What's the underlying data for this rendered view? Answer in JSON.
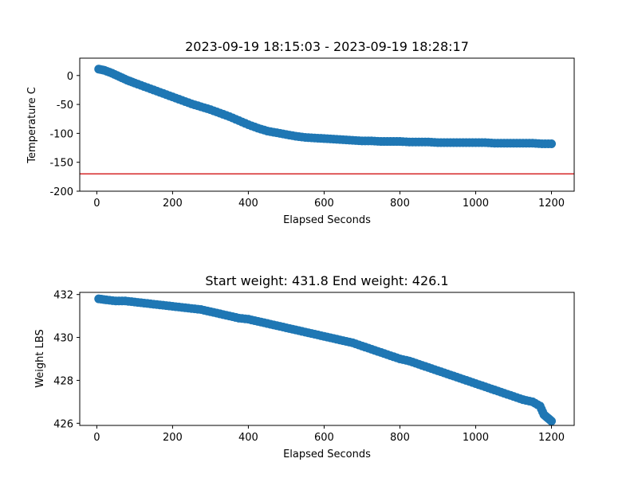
{
  "colors": {
    "series": "#1f77b4",
    "threshold": "#d62728",
    "axis": "#000000"
  },
  "chart_data": [
    {
      "type": "scatter",
      "title": "2023-09-19 18:15:03 - 2023-09-19 18:28:17",
      "xlabel": "Elapsed Seconds",
      "ylabel": "Temperature C",
      "xlim": [
        -45,
        1260
      ],
      "ylim": [
        -200,
        30
      ],
      "xticks": [
        0,
        200,
        400,
        600,
        800,
        1000,
        1200
      ],
      "yticks": [
        -200,
        -150,
        -100,
        -50,
        0
      ],
      "grid": false,
      "reference_line": {
        "y": -170,
        "color": "#d62728"
      },
      "series": [
        {
          "x": [
            5,
            20,
            40,
            60,
            80,
            100,
            125,
            150,
            175,
            200,
            225,
            250,
            275,
            300,
            325,
            350,
            375,
            400,
            425,
            450,
            475,
            500,
            525,
            550,
            575,
            600,
            625,
            650,
            675,
            700,
            725,
            750,
            775,
            800,
            825,
            850,
            875,
            900,
            925,
            950,
            975,
            1000,
            1025,
            1050,
            1075,
            1100,
            1125,
            1150,
            1175,
            1200
          ],
          "y": [
            11,
            9,
            4,
            -2,
            -8,
            -13,
            -19,
            -25,
            -31,
            -37,
            -43,
            -49,
            -54,
            -59,
            -65,
            -71,
            -78,
            -85,
            -91,
            -96,
            -99,
            -102,
            -105,
            -107,
            -108,
            -109,
            -110,
            -111,
            -112,
            -113,
            -113,
            -114,
            -114,
            -114,
            -115,
            -115,
            -115,
            -116,
            -116,
            -116,
            -116,
            -116,
            -116,
            -117,
            -117,
            -117,
            -117,
            -117,
            -118,
            -118
          ]
        }
      ]
    },
    {
      "type": "scatter",
      "title": "Start weight: 431.8 End weight: 426.1",
      "xlabel": "Elapsed Seconds",
      "ylabel": "Weight LBS",
      "xlim": [
        -45,
        1260
      ],
      "ylim": [
        425.9,
        432.1
      ],
      "xticks": [
        0,
        200,
        400,
        600,
        800,
        1000,
        1200
      ],
      "yticks": [
        426,
        428,
        430,
        432
      ],
      "grid": false,
      "series": [
        {
          "x": [
            5,
            25,
            50,
            75,
            100,
            125,
            150,
            175,
            200,
            225,
            250,
            275,
            300,
            325,
            350,
            375,
            400,
            425,
            450,
            475,
            500,
            525,
            550,
            575,
            600,
            625,
            650,
            675,
            700,
            725,
            750,
            775,
            800,
            825,
            850,
            875,
            900,
            925,
            950,
            975,
            1000,
            1025,
            1050,
            1075,
            1100,
            1125,
            1150,
            1170,
            1180,
            1190,
            1200
          ],
          "y": [
            431.8,
            431.75,
            431.7,
            431.7,
            431.65,
            431.6,
            431.55,
            431.5,
            431.45,
            431.4,
            431.35,
            431.3,
            431.2,
            431.1,
            431.0,
            430.9,
            430.85,
            430.75,
            430.65,
            430.55,
            430.45,
            430.35,
            430.25,
            430.15,
            430.05,
            429.95,
            429.85,
            429.75,
            429.6,
            429.45,
            429.3,
            429.15,
            429.0,
            428.9,
            428.75,
            428.6,
            428.45,
            428.3,
            428.15,
            428.0,
            427.85,
            427.7,
            427.55,
            427.4,
            427.25,
            427.1,
            427.0,
            426.8,
            426.4,
            426.25,
            426.1
          ]
        }
      ]
    }
  ]
}
